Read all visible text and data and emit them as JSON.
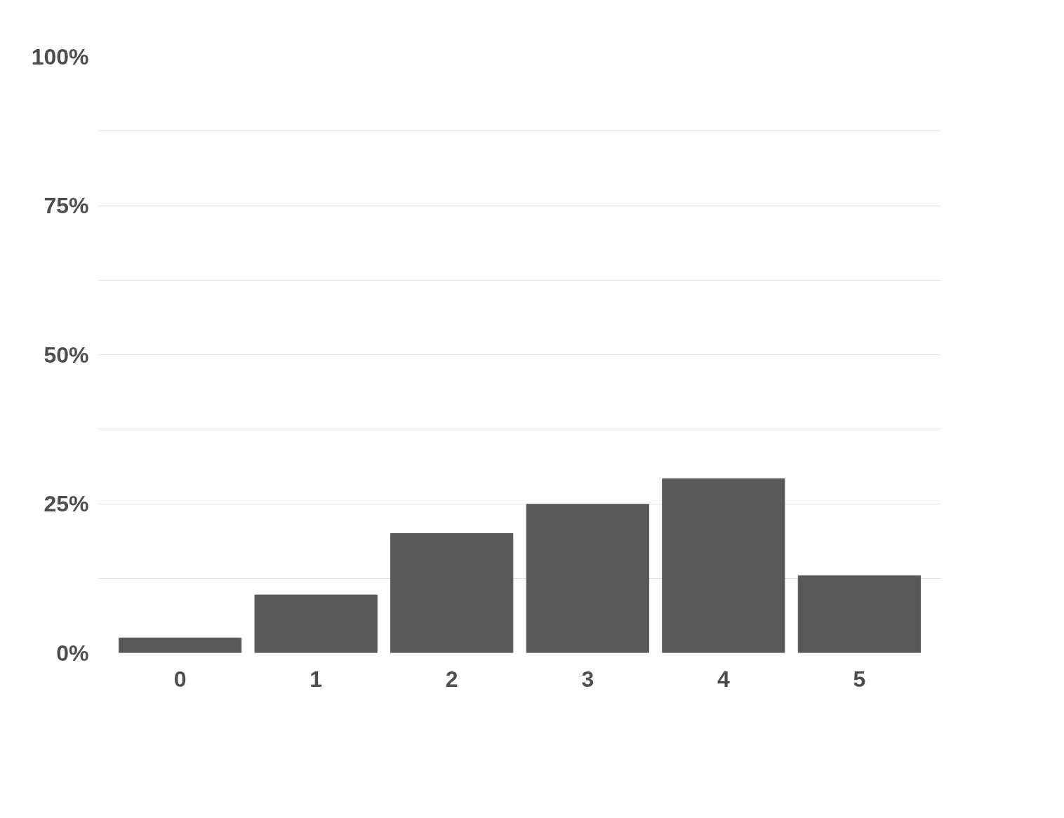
{
  "chart_data": {
    "type": "bar",
    "categories": [
      "0",
      "1",
      "2",
      "3",
      "4",
      "5"
    ],
    "values": [
      2.5,
      9.7,
      20,
      24.9,
      29.2,
      12.9
    ],
    "color": "#595959",
    "ylim": [
      0,
      100
    ],
    "yticks": [
      {
        "value": 0,
        "label": "0%"
      },
      {
        "value": 12.5,
        "label": null
      },
      {
        "value": 25,
        "label": "25%"
      },
      {
        "value": 37.5,
        "label": null
      },
      {
        "value": 50,
        "label": "50%"
      },
      {
        "value": 62.5,
        "label": null
      },
      {
        "value": 75,
        "label": "75%"
      },
      {
        "value": 87.5,
        "label": null
      },
      {
        "value": 100,
        "label": "100%"
      }
    ],
    "grid": "y"
  }
}
